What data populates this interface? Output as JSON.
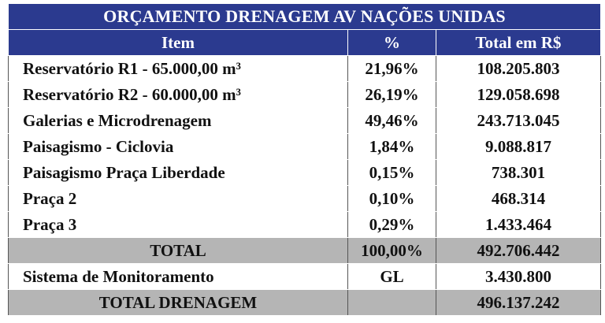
{
  "title": "ORÇAMENTO DRENAGEM AV NAÇÕES UNIDAS",
  "headers": {
    "item": "Item",
    "pct": "%",
    "total": "Total em R$"
  },
  "rows": [
    {
      "item": "Reservatório R1 - 65.000,00 m³",
      "pct": "21,96%",
      "total": "108.205.803"
    },
    {
      "item": "Reservatório R2 - 60.000,00 m³",
      "pct": "26,19%",
      "total": "129.058.698"
    },
    {
      "item": "Galerias e Microdrenagem",
      "pct": "49,46%",
      "total": "243.713.045"
    },
    {
      "item": "Paisagismo - Ciclovia",
      "pct": "1,84%",
      "total": "9.088.817"
    },
    {
      "item": "Paisagismo Praça Liberdade",
      "pct": "0,15%",
      "total": "738.301"
    },
    {
      "item": "Praça 2",
      "pct": "0,10%",
      "total": "468.314"
    },
    {
      "item": "Praça 3",
      "pct": "0,29%",
      "total": "1.433.464"
    }
  ],
  "total": {
    "item": "TOTAL",
    "pct": "100,00%",
    "total": "492.706.442"
  },
  "monitoring": {
    "item": "Sistema de Monitoramento",
    "pct": "GL",
    "total": "3.430.800"
  },
  "grand_total": {
    "item": "TOTAL DRENAGEM",
    "pct": "",
    "total": "496.137.242"
  },
  "colors": {
    "header_bg": "#2b3a8f",
    "header_text": "#ffffff",
    "total_bg": "#b5b5b5"
  }
}
